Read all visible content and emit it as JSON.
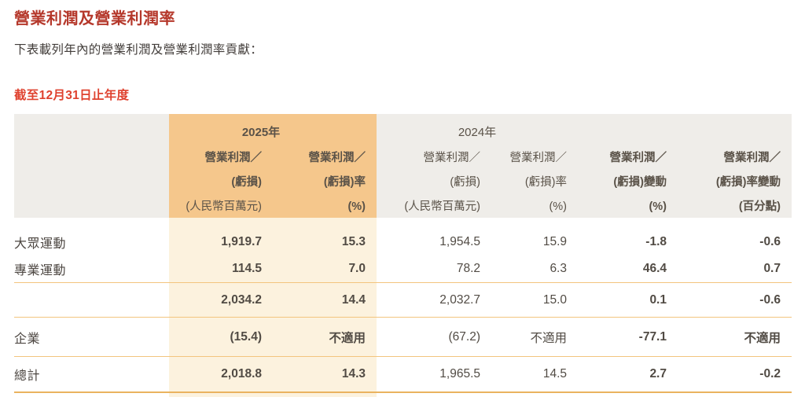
{
  "title": "營業利潤及營業利潤率",
  "subtitle": "下表載列年內的營業利潤及營業利潤率貢獻：",
  "period_label": "截至12月31日止年度",
  "colors": {
    "title_red": "#b5382b",
    "period_red": "#df422f",
    "header_gray_bg": "#efede9",
    "header_orange_bg": "#f5c78c",
    "highlight_cream_bg": "#fcf2de",
    "divider_line": "#f3c57e",
    "bottom_line": "#eab35f",
    "text": "#4c4641"
  },
  "table": {
    "year_groups": [
      {
        "label": "2025年"
      },
      {
        "label": "2024年"
      }
    ],
    "columns": [
      {
        "id": "item",
        "lines": [
          "",
          "",
          ""
        ]
      },
      {
        "id": "op_2025",
        "lines": [
          "營業利潤／",
          "(虧損)",
          "(人民幣百萬元)"
        ]
      },
      {
        "id": "margin_2025",
        "lines": [
          "營業利潤／",
          "(虧損)率",
          "(%)"
        ]
      },
      {
        "id": "op_2024",
        "lines": [
          "營業利潤／",
          "(虧損)",
          "(人民幣百萬元)"
        ]
      },
      {
        "id": "margin_2024",
        "lines": [
          "營業利潤／",
          "(虧損)率",
          "(%)"
        ]
      },
      {
        "id": "op_change",
        "lines": [
          "營業利潤／",
          "(虧損)變動",
          "(%)"
        ]
      },
      {
        "id": "margin_change",
        "lines": [
          "營業利潤／",
          "(虧損)率變動",
          "(百分點)"
        ]
      }
    ],
    "rows": [
      {
        "label": "大眾運動",
        "values": [
          "1,919.7",
          "15.3",
          "1,954.5",
          "15.9",
          "-1.8",
          "-0.6"
        ]
      },
      {
        "label": "專業運動",
        "values": [
          "114.5",
          "7.0",
          "78.2",
          "6.3",
          "46.4",
          "0.7"
        ]
      },
      {
        "label": "",
        "values": [
          "2,034.2",
          "14.4",
          "2,032.7",
          "15.0",
          "0.1",
          "-0.6"
        ]
      },
      {
        "label": "企業",
        "values": [
          "(15.4)",
          "不適用",
          "(67.2)",
          "不適用",
          "-77.1",
          "不適用"
        ]
      },
      {
        "label": "總計",
        "values": [
          "2,018.8",
          "14.3",
          "1,965.5",
          "14.5",
          "2.7",
          "-0.2"
        ]
      }
    ]
  }
}
